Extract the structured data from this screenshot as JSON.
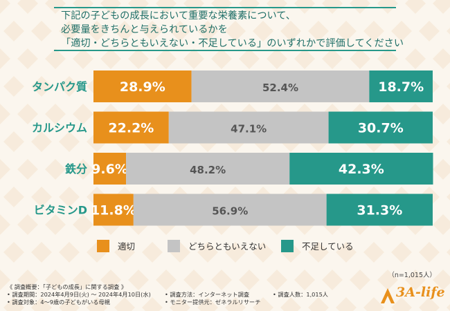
{
  "question": {
    "lines": [
      "下記の子どもの成長において重要な栄養素について、",
      "必要量をきちんと与えられているかを",
      "「適切・どちらともいえない・不足している」のいずれかで評価してください"
    ]
  },
  "chart_data": {
    "type": "bar",
    "orientation": "horizontal",
    "stacked": true,
    "percent_axis": [
      0,
      100
    ],
    "categories": [
      "タンパク質",
      "カルシウム",
      "鉄分",
      "ビタミンD"
    ],
    "series": [
      {
        "name": "適切",
        "color": "#e8901c",
        "values": [
          28.9,
          22.2,
          9.6,
          11.8
        ],
        "labels": [
          "28.9%",
          "22.2%",
          "9.6%",
          "11.8%"
        ]
      },
      {
        "name": "どちらともいえない",
        "color": "#c4c4c4",
        "values": [
          52.4,
          47.1,
          48.2,
          56.9
        ],
        "labels": [
          "52.4%",
          "47.1%",
          "48.2%",
          "56.9%"
        ]
      },
      {
        "name": "不足している",
        "color": "#26988a",
        "values": [
          18.7,
          30.7,
          42.3,
          31.3
        ],
        "labels": [
          "18.7%",
          "30.7%",
          "42.3%",
          "31.3%"
        ]
      }
    ]
  },
  "legend": [
    "適切",
    "どちらともいえない",
    "不足している"
  ],
  "sample_note": "（n=1,015人）",
  "survey": {
    "overview": "《 調査概要：「子どもの成長」に関する調査 》",
    "period": "• 調査期間：2024年4月9日(火) 〜 2024年4月10日(水)",
    "target": "• 調査対象：4〜9歳の子どもがいる母親",
    "method": "• 調査方法：インターネット調査",
    "provider": "• モニター提供元：ゼネラルリサーチ",
    "count": "• 調査人数：1,015人"
  },
  "logo": {
    "text": "3A-life"
  },
  "colors": {
    "accent": "#26988a",
    "orange": "#e8901c",
    "gray": "#c4c4c4"
  }
}
